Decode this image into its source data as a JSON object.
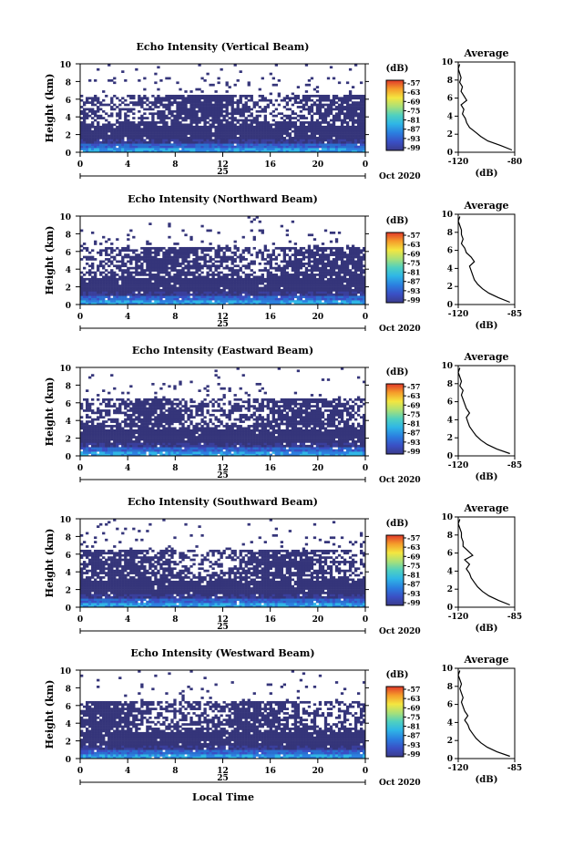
{
  "figure": {
    "xlabel": "Local Time"
  },
  "chart_data": [
    {
      "type": "heatmap",
      "title": "Echo Intensity (Vertical Beam)",
      "ylabel": "Height (km)",
      "yticks": [
        "0",
        "2",
        "4",
        "6",
        "8",
        "10"
      ],
      "xticks": [
        "0",
        "4",
        "8",
        "12",
        "16",
        "20",
        "0"
      ],
      "day_label": "25",
      "date_label": "Oct 2020",
      "colorbar": {
        "unit": "(dB)",
        "ticks": [
          "-57",
          "-63",
          "-69",
          "-75",
          "-81",
          "-87",
          "-93",
          "-99"
        ],
        "vmin": -99,
        "vmax": -57
      },
      "profile": {
        "title": "Average",
        "xlabel": "(dB)",
        "xticks": [
          "-120",
          "-80"
        ],
        "xlim": [
          -120,
          -80
        ],
        "ylim": [
          0,
          10
        ],
        "heights": [
          0.25,
          0.75,
          1.25,
          1.75,
          2.25,
          2.75,
          3.25,
          3.75,
          4.25,
          4.75,
          5.25,
          5.75,
          6.25,
          6.75,
          7.25,
          7.75,
          8.25,
          8.75,
          9.25,
          9.75
        ],
        "values": [
          -82,
          -90,
          -99,
          -104,
          -108,
          -112,
          -114,
          -115,
          -117,
          -116,
          -118,
          -114,
          -116,
          -118,
          -117,
          -119,
          -118,
          -119,
          -120,
          -119
        ]
      }
    },
    {
      "type": "heatmap",
      "title": "Echo Intensity (Northward Beam)",
      "ylabel": "Height (km)",
      "yticks": [
        "0",
        "2",
        "4",
        "6",
        "8",
        "10"
      ],
      "xticks": [
        "0",
        "4",
        "8",
        "12",
        "16",
        "20",
        "0"
      ],
      "day_label": "25",
      "date_label": "Oct 2020",
      "colorbar": {
        "unit": "(dB)",
        "ticks": [
          "-57",
          "-63",
          "-69",
          "-75",
          "-81",
          "-87",
          "-93",
          "-99"
        ],
        "vmin": -99,
        "vmax": -57
      },
      "profile": {
        "title": "Average",
        "xlabel": "(dB)",
        "xticks": [
          "-120",
          "-85"
        ],
        "xlim": [
          -120,
          -85
        ],
        "ylim": [
          0,
          10
        ],
        "heights": [
          0.25,
          0.75,
          1.25,
          1.75,
          2.25,
          2.75,
          3.25,
          3.75,
          4.25,
          4.75,
          5.25,
          5.75,
          6.25,
          6.75,
          7.25,
          7.75,
          8.25,
          8.75,
          9.25,
          9.75
        ],
        "values": [
          -88,
          -95,
          -101,
          -105,
          -108,
          -110,
          -111,
          -112,
          -113,
          -110,
          -112,
          -115,
          -116,
          -118,
          -117,
          -118,
          -118,
          -119,
          -120,
          -119
        ]
      }
    },
    {
      "type": "heatmap",
      "title": "Echo Intensity (Eastward Beam)",
      "ylabel": "Height (km)",
      "yticks": [
        "0",
        "2",
        "4",
        "6",
        "8",
        "10"
      ],
      "xticks": [
        "0",
        "4",
        "8",
        "12",
        "16",
        "20",
        "0"
      ],
      "day_label": "25",
      "date_label": "Oct 2020",
      "colorbar": {
        "unit": "(dB)",
        "ticks": [
          "-57",
          "-63",
          "-69",
          "-75",
          "-81",
          "-87",
          "-93",
          "-99"
        ],
        "vmin": -99,
        "vmax": -57
      },
      "profile": {
        "title": "Average",
        "xlabel": "(dB)",
        "xticks": [
          "-120",
          "-85"
        ],
        "xlim": [
          -120,
          -85
        ],
        "ylim": [
          0,
          10
        ],
        "heights": [
          0.25,
          0.75,
          1.25,
          1.75,
          2.25,
          2.75,
          3.25,
          3.75,
          4.25,
          4.75,
          5.25,
          5.75,
          6.25,
          6.75,
          7.25,
          7.75,
          8.25,
          8.75,
          9.25,
          9.75
        ],
        "values": [
          -88,
          -96,
          -102,
          -106,
          -109,
          -111,
          -113,
          -114,
          -115,
          -113,
          -115,
          -116,
          -117,
          -118,
          -117,
          -119,
          -118,
          -119,
          -120,
          -119
        ]
      }
    },
    {
      "type": "heatmap",
      "title": "Echo Intensity (Southward Beam)",
      "ylabel": "Height (km)",
      "yticks": [
        "0",
        "2",
        "4",
        "6",
        "8",
        "10"
      ],
      "xticks": [
        "0",
        "4",
        "8",
        "12",
        "16",
        "20",
        "0"
      ],
      "day_label": "25",
      "date_label": "Oct 2020",
      "colorbar": {
        "unit": "(dB)",
        "ticks": [
          "-57",
          "-63",
          "-69",
          "-75",
          "-81",
          "-87",
          "-93",
          "-99"
        ],
        "vmin": -99,
        "vmax": -57
      },
      "profile": {
        "title": "Average",
        "xlabel": "(dB)",
        "xticks": [
          "-120",
          "-85"
        ],
        "xlim": [
          -120,
          -85
        ],
        "ylim": [
          0,
          10
        ],
        "heights": [
          0.25,
          0.75,
          1.25,
          1.75,
          2.25,
          2.75,
          3.25,
          3.75,
          4.25,
          4.75,
          5.25,
          5.75,
          6.25,
          6.75,
          7.25,
          7.75,
          8.25,
          8.75,
          9.25,
          9.75
        ],
        "values": [
          -88,
          -95,
          -101,
          -105,
          -108,
          -110,
          -112,
          -113,
          -115,
          -113,
          -116,
          -111,
          -114,
          -117,
          -117,
          -118,
          -118,
          -119,
          -120,
          -119
        ]
      }
    },
    {
      "type": "heatmap",
      "title": "Echo Intensity (Westward Beam)",
      "ylabel": "Height (km)",
      "yticks": [
        "0",
        "2",
        "4",
        "6",
        "8",
        "10"
      ],
      "xticks": [
        "0",
        "4",
        "8",
        "12",
        "16",
        "20",
        "0"
      ],
      "day_label": "25",
      "date_label": "Oct 2020",
      "colorbar": {
        "unit": "(dB)",
        "ticks": [
          "-57",
          "-63",
          "-69",
          "-75",
          "-81",
          "-87",
          "-93",
          "-99"
        ],
        "vmin": -99,
        "vmax": -57
      },
      "profile": {
        "title": "Average",
        "xlabel": "(dB)",
        "xticks": [
          "-120",
          "-85"
        ],
        "xlim": [
          -120,
          -85
        ],
        "ylim": [
          0,
          10
        ],
        "heights": [
          0.25,
          0.75,
          1.25,
          1.75,
          2.25,
          2.75,
          3.25,
          3.75,
          4.25,
          4.75,
          5.25,
          5.75,
          6.25,
          6.75,
          7.25,
          7.75,
          8.25,
          8.75,
          9.25,
          9.75
        ],
        "values": [
          -88,
          -96,
          -102,
          -106,
          -109,
          -111,
          -113,
          -114,
          -116,
          -114,
          -116,
          -117,
          -118,
          -117,
          -118,
          -119,
          -118,
          -119,
          -120,
          -119
        ]
      }
    }
  ]
}
